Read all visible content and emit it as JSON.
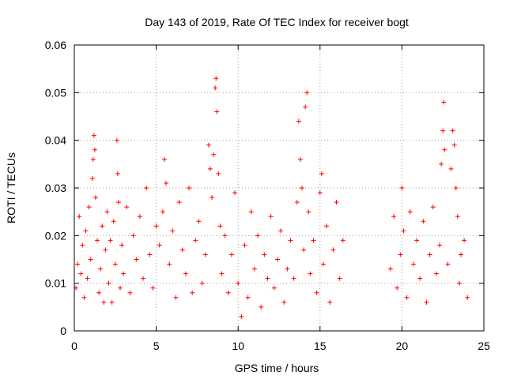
{
  "chart_data": {
    "type": "scatter",
    "title": "Day 143 of 2019, Rate Of TEC Index for receiver bogt",
    "xlabel": "GPS time / hours",
    "ylabel": "ROTI / TECUs",
    "xlim": [
      0,
      25
    ],
    "ylim": [
      0,
      0.06
    ],
    "x_ticks": [
      "0",
      "5",
      "10",
      "15",
      "20",
      "25"
    ],
    "y_ticks": [
      "0",
      "0.01",
      "0.02",
      "0.03",
      "0.04",
      "0.05",
      "0.06"
    ],
    "grid": true,
    "marker": "+",
    "series_color": "#ff0000",
    "data_gap_hours": [
      16.5,
      19.2
    ],
    "points": [
      [
        0.1,
        0.009
      ],
      [
        0.2,
        0.014
      ],
      [
        0.3,
        0.024
      ],
      [
        0.4,
        0.012
      ],
      [
        0.5,
        0.018
      ],
      [
        0.6,
        0.007
      ],
      [
        0.7,
        0.021
      ],
      [
        0.8,
        0.011
      ],
      [
        0.9,
        0.026
      ],
      [
        1.0,
        0.015
      ],
      [
        1.1,
        0.032
      ],
      [
        1.15,
        0.036
      ],
      [
        1.2,
        0.041
      ],
      [
        1.25,
        0.038
      ],
      [
        1.3,
        0.028
      ],
      [
        1.4,
        0.019
      ],
      [
        1.5,
        0.008
      ],
      [
        1.6,
        0.013
      ],
      [
        1.7,
        0.022
      ],
      [
        1.8,
        0.006
      ],
      [
        1.9,
        0.017
      ],
      [
        2.0,
        0.025
      ],
      [
        2.1,
        0.01
      ],
      [
        2.2,
        0.019
      ],
      [
        2.3,
        0.006
      ],
      [
        2.4,
        0.023
      ],
      [
        2.5,
        0.014
      ],
      [
        2.6,
        0.04
      ],
      [
        2.65,
        0.033
      ],
      [
        2.7,
        0.027
      ],
      [
        2.8,
        0.009
      ],
      [
        2.9,
        0.018
      ],
      [
        3.0,
        0.012
      ],
      [
        3.2,
        0.026
      ],
      [
        3.4,
        0.008
      ],
      [
        3.6,
        0.02
      ],
      [
        3.8,
        0.015
      ],
      [
        4.0,
        0.024
      ],
      [
        4.2,
        0.011
      ],
      [
        4.4,
        0.03
      ],
      [
        4.6,
        0.016
      ],
      [
        4.8,
        0.009
      ],
      [
        5.0,
        0.022
      ],
      [
        5.2,
        0.018
      ],
      [
        5.4,
        0.025
      ],
      [
        5.5,
        0.036
      ],
      [
        5.6,
        0.031
      ],
      [
        5.8,
        0.014
      ],
      [
        6.0,
        0.021
      ],
      [
        6.2,
        0.007
      ],
      [
        6.4,
        0.027
      ],
      [
        6.6,
        0.017
      ],
      [
        6.8,
        0.012
      ],
      [
        7.0,
        0.03
      ],
      [
        7.2,
        0.008
      ],
      [
        7.4,
        0.019
      ],
      [
        7.6,
        0.023
      ],
      [
        7.8,
        0.01
      ],
      [
        8.0,
        0.016
      ],
      [
        8.2,
        0.039
      ],
      [
        8.3,
        0.034
      ],
      [
        8.4,
        0.028
      ],
      [
        8.5,
        0.037
      ],
      [
        8.6,
        0.051
      ],
      [
        8.65,
        0.053
      ],
      [
        8.7,
        0.046
      ],
      [
        8.8,
        0.033
      ],
      [
        8.9,
        0.022
      ],
      [
        9.0,
        0.012
      ],
      [
        9.2,
        0.02
      ],
      [
        9.4,
        0.008
      ],
      [
        9.6,
        0.016
      ],
      [
        9.8,
        0.029
      ],
      [
        10.0,
        0.01
      ],
      [
        10.2,
        0.003
      ],
      [
        10.4,
        0.018
      ],
      [
        10.6,
        0.007
      ],
      [
        10.8,
        0.025
      ],
      [
        11.0,
        0.013
      ],
      [
        11.2,
        0.02
      ],
      [
        11.4,
        0.005
      ],
      [
        11.6,
        0.016
      ],
      [
        11.8,
        0.011
      ],
      [
        12.0,
        0.024
      ],
      [
        12.2,
        0.009
      ],
      [
        12.4,
        0.015
      ],
      [
        12.6,
        0.021
      ],
      [
        12.8,
        0.006
      ],
      [
        13.0,
        0.013
      ],
      [
        13.2,
        0.019
      ],
      [
        13.4,
        0.011
      ],
      [
        13.6,
        0.027
      ],
      [
        13.7,
        0.044
      ],
      [
        13.8,
        0.036
      ],
      [
        13.9,
        0.03
      ],
      [
        14.0,
        0.017
      ],
      [
        14.1,
        0.047
      ],
      [
        14.2,
        0.05
      ],
      [
        14.3,
        0.025
      ],
      [
        14.4,
        0.012
      ],
      [
        14.6,
        0.019
      ],
      [
        14.8,
        0.008
      ],
      [
        15.0,
        0.029
      ],
      [
        15.1,
        0.033
      ],
      [
        15.2,
        0.014
      ],
      [
        15.4,
        0.022
      ],
      [
        15.6,
        0.006
      ],
      [
        15.8,
        0.017
      ],
      [
        16.0,
        0.027
      ],
      [
        16.2,
        0.011
      ],
      [
        16.4,
        0.019
      ],
      [
        19.3,
        0.013
      ],
      [
        19.5,
        0.024
      ],
      [
        19.7,
        0.009
      ],
      [
        19.9,
        0.016
      ],
      [
        20.0,
        0.03
      ],
      [
        20.1,
        0.021
      ],
      [
        20.3,
        0.007
      ],
      [
        20.5,
        0.025
      ],
      [
        20.7,
        0.014
      ],
      [
        20.9,
        0.019
      ],
      [
        21.1,
        0.011
      ],
      [
        21.3,
        0.023
      ],
      [
        21.5,
        0.006
      ],
      [
        21.7,
        0.016
      ],
      [
        21.9,
        0.026
      ],
      [
        22.1,
        0.012
      ],
      [
        22.3,
        0.018
      ],
      [
        22.4,
        0.035
      ],
      [
        22.5,
        0.042
      ],
      [
        22.55,
        0.048
      ],
      [
        22.6,
        0.038
      ],
      [
        22.8,
        0.014
      ],
      [
        23.0,
        0.034
      ],
      [
        23.1,
        0.042
      ],
      [
        23.2,
        0.039
      ],
      [
        23.3,
        0.03
      ],
      [
        23.4,
        0.024
      ],
      [
        23.5,
        0.01
      ],
      [
        23.6,
        0.016
      ],
      [
        23.8,
        0.019
      ],
      [
        24.0,
        0.007
      ]
    ]
  }
}
